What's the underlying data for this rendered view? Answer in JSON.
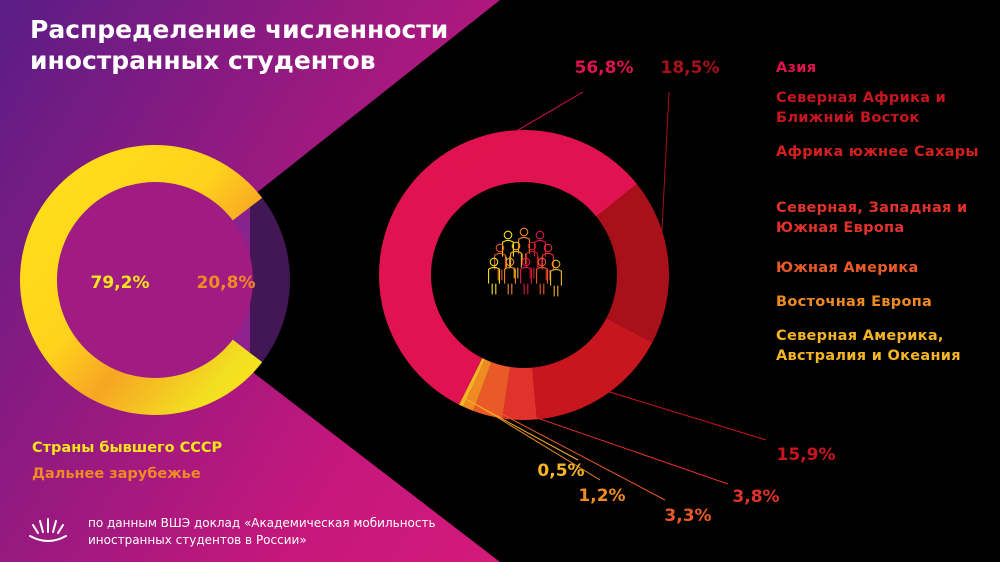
{
  "title": "Распределение численности иностранных студентов",
  "source": "по данным ВШЭ доклад «Академическая мобильность иностранных студентов в России»",
  "logo_icon": "hse-logo-icon",
  "people_icon": "people-group-icon",
  "colors": {
    "background_left": [
      "#5a1d86",
      "#c4177c",
      "#e81d7a"
    ],
    "background_right": "#000000",
    "text_white": "#ffffff"
  },
  "chart_data": [
    {
      "type": "pie",
      "style": "donut",
      "slices": [
        {
          "name": "Страны бывшего СССР",
          "value": 79.2,
          "label": "79,2%",
          "color": "#f5e51a"
        },
        {
          "name": "Дальнее зарубежье",
          "value": 20.8,
          "label": "20,8%",
          "color": "#f08a24"
        }
      ],
      "legend": "bottom-left"
    },
    {
      "type": "pie",
      "style": "donut",
      "slices": [
        {
          "name": "Азия",
          "value": 56.8,
          "label": "56,8%",
          "color": "#e0124f"
        },
        {
          "name": "Северная Африка и Ближний Восток",
          "value": 18.5,
          "label": "18,5%",
          "color": "#a8101a"
        },
        {
          "name": "Африка южнее Сахары",
          "value": 15.9,
          "label": "15,9%",
          "color": "#c8161e"
        },
        {
          "name": "Северная, Западная и Южная Европа",
          "value": 3.8,
          "label": "3,8%",
          "color": "#e2322c"
        },
        {
          "name": "Южная Америка",
          "value": 3.3,
          "label": "3,3%",
          "color": "#ea5a28"
        },
        {
          "name": "Восточная Европа",
          "value": 1.2,
          "label": "1,2%",
          "color": "#f08a22"
        },
        {
          "name": "Северная Америка, Австралия и Океания",
          "value": 0.5,
          "label": "0,5%",
          "color": "#f5b526"
        }
      ],
      "legend": "right"
    }
  ]
}
